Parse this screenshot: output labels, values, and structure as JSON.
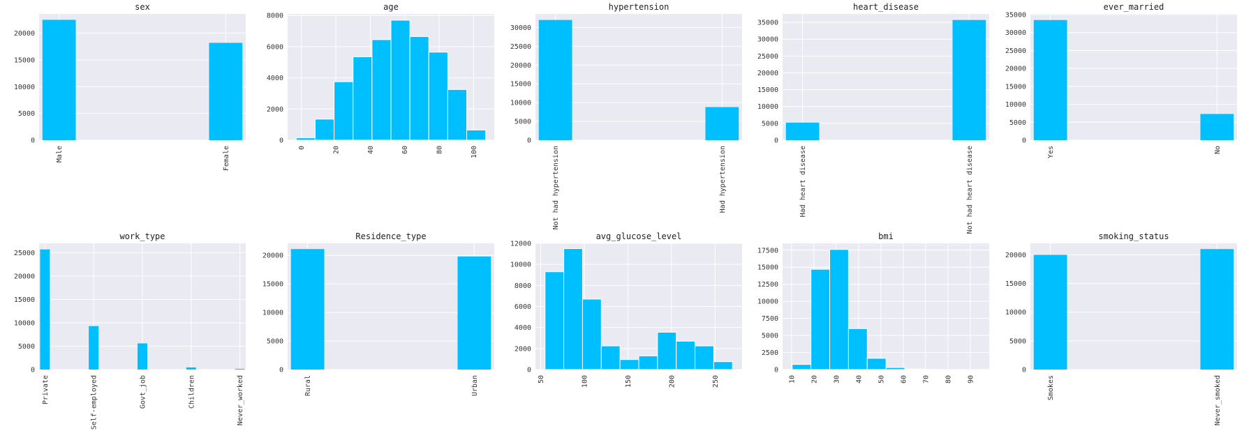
{
  "bar_color": "#00bfff",
  "panel_background": "#eaeaf2",
  "grid_color": "#ffffff",
  "chart_data": [
    {
      "type": "bar",
      "title": "sex",
      "categories": [
        "Male",
        "Female"
      ],
      "values": [
        22500,
        18200
      ],
      "ylim": [
        0,
        23600
      ],
      "yticks": [
        0,
        5000,
        10000,
        15000,
        20000
      ]
    },
    {
      "type": "histogram",
      "title": "age",
      "bin_edges": [
        -3,
        8,
        19,
        30,
        41,
        52,
        63,
        74,
        85,
        96,
        107
      ],
      "counts": [
        150,
        1350,
        3750,
        5350,
        6450,
        7700,
        6650,
        5650,
        3250,
        650
      ],
      "xlim": [
        -8,
        112
      ],
      "xticks": [
        0,
        20,
        40,
        60,
        80,
        100
      ],
      "ylim": [
        0,
        8100
      ],
      "yticks": [
        0,
        2000,
        4000,
        6000,
        8000
      ]
    },
    {
      "type": "bar",
      "title": "hypertension",
      "categories": [
        "Not had hypertension",
        "Had hypertension"
      ],
      "values": [
        32000,
        8800
      ],
      "ylim": [
        0,
        33600
      ],
      "yticks": [
        0,
        5000,
        10000,
        15000,
        20000,
        25000,
        30000
      ]
    },
    {
      "type": "bar",
      "title": "heart_disease",
      "categories": [
        "Had heart disease",
        "Not had heart disease"
      ],
      "values": [
        5200,
        35700
      ],
      "ylim": [
        0,
        37500
      ],
      "yticks": [
        0,
        5000,
        10000,
        15000,
        20000,
        25000,
        30000,
        35000
      ]
    },
    {
      "type": "bar",
      "title": "ever_married",
      "categories": [
        "Yes",
        "No"
      ],
      "values": [
        33500,
        7300
      ],
      "ylim": [
        0,
        35200
      ],
      "yticks": [
        0,
        5000,
        10000,
        15000,
        20000,
        25000,
        30000,
        35000
      ]
    },
    {
      "type": "bar",
      "title": "work_type",
      "categories": [
        "Private",
        "Self-employed",
        "Govt_job",
        "Children",
        "Never_worked"
      ],
      "values": [
        25700,
        9300,
        5600,
        450,
        150
      ],
      "ylim": [
        0,
        27000
      ],
      "yticks": [
        0,
        5000,
        10000,
        15000,
        20000,
        25000
      ]
    },
    {
      "type": "bar",
      "title": "Residence_type",
      "categories": [
        "Rural",
        "Urban"
      ],
      "values": [
        21100,
        19800
      ],
      "ylim": [
        0,
        22100
      ],
      "yticks": [
        0,
        5000,
        10000,
        15000,
        20000
      ]
    },
    {
      "type": "histogram",
      "title": "avg_glucose_level",
      "bin_edges": [
        55,
        76.5,
        98,
        119.5,
        141,
        162.5,
        184,
        205.5,
        227,
        248.5,
        270
      ],
      "counts": [
        9300,
        11500,
        6700,
        2250,
        950,
        1300,
        3550,
        2700,
        2250,
        750
      ],
      "xlim": [
        44,
        281
      ],
      "xticks": [
        50,
        100,
        150,
        200,
        250
      ],
      "ylim": [
        0,
        12000
      ],
      "yticks": [
        0,
        2000,
        4000,
        6000,
        8000,
        10000,
        12000
      ]
    },
    {
      "type": "histogram",
      "title": "bmi",
      "bin_edges": [
        10.3,
        18.7,
        27.1,
        35.5,
        43.9,
        52.3,
        60.7,
        69.1,
        77.5,
        85.9,
        94.3
      ],
      "counts": [
        750,
        14700,
        17600,
        6000,
        1650,
        300,
        80,
        30,
        10,
        5
      ],
      "xlim": [
        6,
        98.5
      ],
      "xticks": [
        10,
        20,
        30,
        40,
        50,
        60,
        70,
        80,
        90
      ],
      "ylim": [
        0,
        18500
      ],
      "yticks": [
        0,
        2500,
        5000,
        7500,
        10000,
        12500,
        15000,
        17500
      ]
    },
    {
      "type": "bar",
      "title": "smoking_status",
      "categories": [
        "Smokes",
        "Never_smoked"
      ],
      "values": [
        20000,
        21000
      ],
      "ylim": [
        0,
        22000
      ],
      "yticks": [
        0,
        5000,
        10000,
        15000,
        20000
      ]
    }
  ]
}
